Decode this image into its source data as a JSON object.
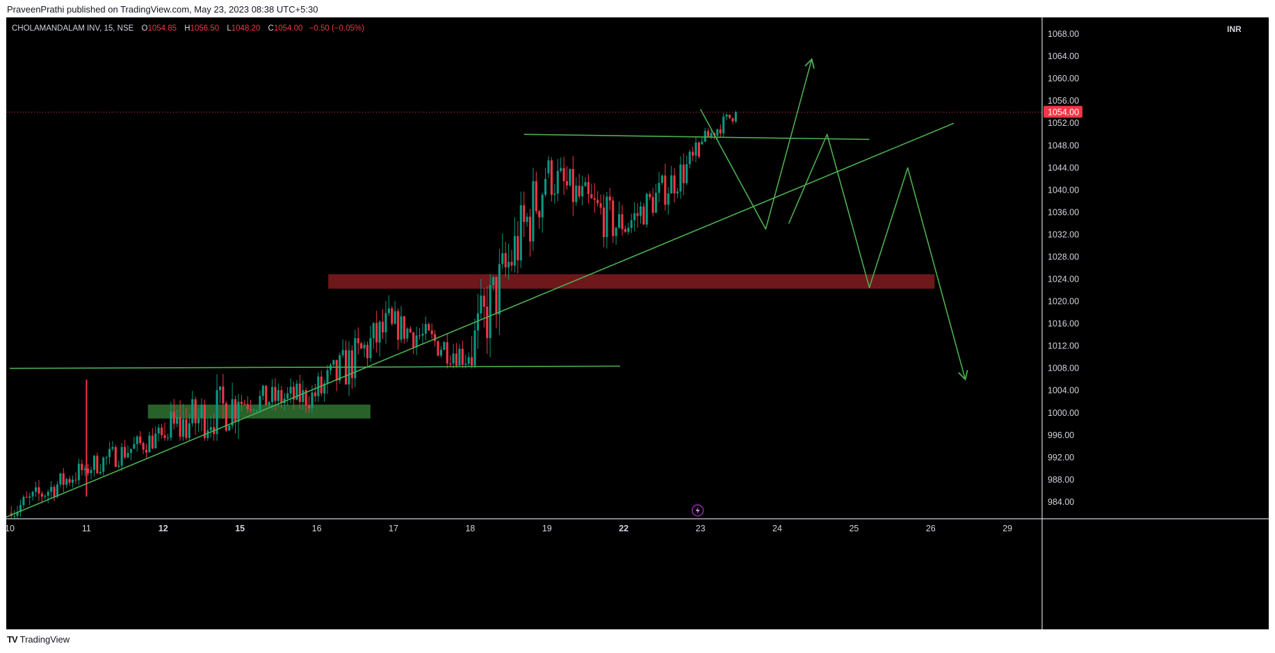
{
  "header": {
    "publisher_line": "PraveenPrathi published on TradingView.com, May 23, 2023 08:38 UTC+5:30"
  },
  "legend": {
    "symbol": "CHOLAMANDALAM INV, 15, NSE",
    "open_label": "O",
    "open": "1054.85",
    "high_label": "H",
    "high": "1056.50",
    "low_label": "L",
    "low": "1048.20",
    "close_label": "C",
    "close": "1054.00",
    "change": "−0.50 (−0.05%)"
  },
  "currency": "INR",
  "last_price_label": "1054.00",
  "footer": {
    "brand": "TradingView",
    "logo": "TV"
  },
  "colors": {
    "background": "#000000",
    "up": "#089981",
    "down": "#f23645",
    "drawing": "#4caf50",
    "supply_zone": "#7a1b1f",
    "demand_zone": "#2e6b2f",
    "axis_text": "#d1d4dc"
  },
  "chart_data": {
    "type": "candlestick",
    "ylim": [
      981,
      1071
    ],
    "y_ticks": [
      984,
      988,
      992,
      996,
      1000,
      1004,
      1008,
      1012,
      1016,
      1020,
      1024,
      1028,
      1032,
      1036,
      1040,
      1044,
      1048,
      1052,
      1056,
      1060,
      1064,
      1068
    ],
    "x_ticks": [
      "10",
      "11",
      "12",
      "15",
      "16",
      "17",
      "18",
      "19",
      "22",
      "23",
      "24",
      "25",
      "26",
      "29"
    ],
    "x_tick_bold": [
      "12",
      "15",
      "22"
    ],
    "last_price": 1054.0,
    "sessions": [
      {
        "label": "10",
        "open": 982,
        "close": 990,
        "high": 993,
        "low": 981,
        "spike": {
          "high": 1006,
          "low": 985
        }
      },
      {
        "label": "11",
        "open": 990,
        "close": 996,
        "high": 998,
        "low": 986
      },
      {
        "label": "12",
        "open": 996,
        "close": 1002,
        "high": 1021,
        "low": 995
      },
      {
        "label": "15",
        "open": 1002,
        "close": 1003,
        "high": 1015,
        "low": 1000
      },
      {
        "label": "16",
        "open": 1003,
        "close": 1016,
        "high": 1025,
        "low": 1002
      },
      {
        "label": "17",
        "open": 1016,
        "close": 1010,
        "high": 1024,
        "low": 1008
      },
      {
        "label": "18",
        "open": 1010,
        "close": 1042,
        "high": 1044,
        "low": 1008
      },
      {
        "label": "19",
        "open": 1043,
        "close": 1033,
        "high": 1050,
        "low": 1027
      },
      {
        "label": "22",
        "open": 1033,
        "close": 1046,
        "high": 1050,
        "low": 1032
      },
      {
        "label": "23",
        "open": 1048.2,
        "close": 1054.0,
        "high": 1056.5,
        "low": 1048.2
      }
    ],
    "drawings": {
      "trend_line": [
        {
          "x": -0.1,
          "y": 981
        },
        {
          "x": 12.3,
          "y": 1052
        }
      ],
      "support_line": [
        {
          "x": 0,
          "y": 1008
        },
        {
          "x": 7.95,
          "y": 1008.4
        }
      ],
      "resistance_line": [
        {
          "x": 6.7,
          "y": 1050
        },
        {
          "x": 11.2,
          "y": 1049.1
        }
      ],
      "projection_up": [
        {
          "x": 9.0,
          "y": 1054.5
        },
        {
          "x": 9.85,
          "y": 1033
        },
        {
          "x": 10.45,
          "y": 1063.5
        }
      ],
      "projection_down": [
        {
          "x": 10.15,
          "y": 1034
        },
        {
          "x": 10.65,
          "y": 1050
        },
        {
          "x": 11.2,
          "y": 1022.5
        },
        {
          "x": 11.7,
          "y": 1044
        },
        {
          "x": 12.45,
          "y": 1006
        }
      ],
      "supply_zone": {
        "x1": 4.15,
        "x2": 12.05,
        "y1": 1022.3,
        "y2": 1024.9
      },
      "demand_zone": {
        "x1": 1.8,
        "x2": 4.7,
        "y1": 999.0,
        "y2": 1001.5
      }
    }
  }
}
